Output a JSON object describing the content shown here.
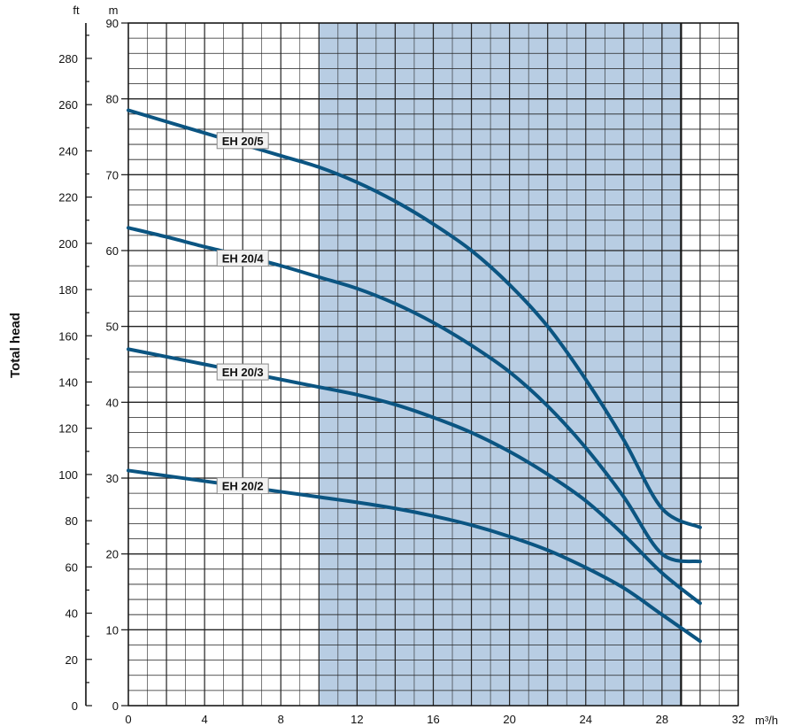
{
  "chart_data": {
    "type": "line",
    "ylabel": "Total head",
    "x_unit": "m³/h",
    "y_unit_left": "m",
    "y_unit_far_left": "ft",
    "xlim": [
      0,
      32
    ],
    "ylim_m": [
      0,
      90
    ],
    "ylim_ft": [
      0,
      295.3
    ],
    "x_ticks": [
      0,
      4,
      8,
      12,
      16,
      20,
      24,
      28,
      32
    ],
    "y_ticks_m": [
      0,
      10,
      20,
      30,
      40,
      50,
      60,
      70,
      80,
      90
    ],
    "y_ticks_ft": [
      0,
      20,
      40,
      60,
      80,
      100,
      120,
      140,
      160,
      180,
      200,
      220,
      240,
      260,
      280
    ],
    "highlight_range": [
      10,
      29
    ],
    "highlight_color": "#b8cde3",
    "grid": true,
    "line_color": "#0b5582",
    "series": [
      {
        "name": "EH 20/5",
        "x": [
          0,
          2,
          4,
          6,
          8,
          10,
          12,
          14,
          16,
          18,
          20,
          22,
          24,
          26,
          28,
          30
        ],
        "y": [
          78.5,
          77.0,
          75.5,
          74.0,
          72.5,
          71.0,
          69.0,
          66.5,
          63.5,
          60.0,
          55.5,
          50.0,
          43.0,
          35.0,
          26.0,
          23.5
        ]
      },
      {
        "name": "EH 20/4",
        "x": [
          0,
          2,
          4,
          6,
          8,
          10,
          12,
          14,
          16,
          18,
          20,
          22,
          24,
          26,
          28,
          30
        ],
        "y": [
          63.0,
          61.8,
          60.5,
          59.3,
          58.0,
          56.5,
          55.0,
          53.0,
          50.5,
          47.5,
          44.0,
          39.5,
          34.0,
          27.5,
          20.0,
          19.0
        ]
      },
      {
        "name": "EH 20/3",
        "x": [
          0,
          2,
          4,
          6,
          8,
          10,
          12,
          14,
          16,
          18,
          20,
          22,
          24,
          26,
          28,
          30
        ],
        "y": [
          47.0,
          46.0,
          45.0,
          44.0,
          43.0,
          42.0,
          41.0,
          39.7,
          38.0,
          36.0,
          33.5,
          30.5,
          27.0,
          22.5,
          17.5,
          13.5
        ]
      },
      {
        "name": "EH 20/2",
        "x": [
          0,
          2,
          4,
          6,
          8,
          10,
          12,
          14,
          16,
          18,
          20,
          22,
          24,
          26,
          28,
          30
        ],
        "y": [
          31.0,
          30.3,
          29.6,
          28.9,
          28.2,
          27.5,
          26.8,
          26.0,
          25.0,
          23.8,
          22.3,
          20.5,
          18.2,
          15.5,
          12.0,
          8.5
        ]
      }
    ],
    "series_labels": [
      {
        "text": "EH 20/5",
        "x": 6.0,
        "y": 74.5
      },
      {
        "text": "EH 20/4",
        "x": 6.0,
        "y": 59.0
      },
      {
        "text": "EH 20/3",
        "x": 6.0,
        "y": 44.0
      },
      {
        "text": "EH 20/2",
        "x": 6.0,
        "y": 29.0
      }
    ]
  }
}
